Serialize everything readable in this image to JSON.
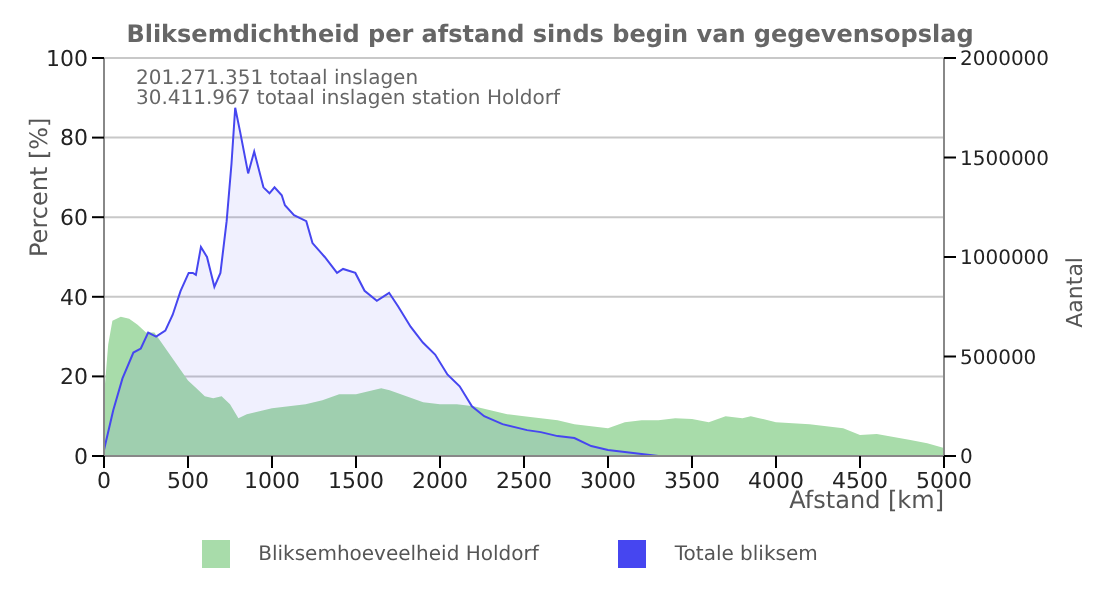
{
  "chart_data": {
    "type": "area",
    "title": "Bliksemdichtheid per afstand sinds begin van gegevensopslag",
    "xlabel": "Afstand   [km]",
    "ylabel": "Percent   [%]",
    "y2label": "Aantal",
    "annotations": [
      "201.271.351 totaal inslagen",
      "30.411.967 totaal inslagen station Holdorf"
    ],
    "xlim": [
      0,
      5000
    ],
    "xticks": [
      0,
      500,
      1000,
      1500,
      2000,
      2500,
      3000,
      3500,
      4000,
      4500,
      5000
    ],
    "ylim": [
      0,
      100
    ],
    "yticks": [
      0,
      20,
      40,
      60,
      80,
      100
    ],
    "y2lim": [
      0,
      2000000
    ],
    "y2ticks": [
      0,
      500000,
      1000000,
      1500000,
      2000000
    ],
    "grid": "y",
    "legend": "bottom",
    "series": [
      {
        "name": "Bliksemhoeveelheid Holdorf",
        "color": "#a8dcaa",
        "x": [
          0,
          25,
          50,
          100,
          150,
          200,
          250,
          300,
          350,
          400,
          450,
          500,
          550,
          600,
          650,
          700,
          750,
          800,
          850,
          900,
          1000,
          1100,
          1200,
          1300,
          1400,
          1500,
          1600,
          1650,
          1700,
          1800,
          1900,
          2000,
          2100,
          2200,
          2300,
          2400,
          2500,
          2600,
          2700,
          2800,
          2900,
          3000,
          3100,
          3200,
          3300,
          3400,
          3500,
          3600,
          3700,
          3800,
          3850,
          3900,
          4000,
          4200,
          4400,
          4500,
          4600,
          4800,
          4900,
          5000
        ],
        "values": [
          15,
          28,
          34,
          35,
          34.5,
          33,
          31,
          31,
          28,
          25,
          22,
          19,
          17,
          15,
          14.5,
          15,
          13,
          9.5,
          10.5,
          11,
          12,
          12.5,
          13,
          14,
          15.5,
          15.5,
          16.5,
          17,
          16.5,
          15,
          13.5,
          13,
          13,
          12.5,
          11.5,
          10.5,
          10,
          9.5,
          9,
          8,
          7.5,
          7,
          8.5,
          9,
          9,
          9.5,
          9.3,
          8.5,
          10,
          9.5,
          10,
          9.5,
          8.5,
          8,
          7,
          5.3,
          5.5,
          4,
          3.2,
          2
        ]
      },
      {
        "name": "Totale bliksem",
        "axis": "y2",
        "color": "#4646f0",
        "x": [
          0,
          55,
          110,
          175,
          219,
          263,
          310,
          365,
          409,
          456,
          504,
          529,
          547,
          577,
          613,
          657,
          693,
          730,
          759,
          781,
          810,
          858,
          894,
          949,
          985,
          1015,
          1058,
          1077,
          1131,
          1204,
          1241,
          1314,
          1387,
          1423,
          1496,
          1551,
          1624,
          1697,
          1752,
          1825,
          1898,
          1971,
          2044,
          2117,
          2190,
          2263,
          2372,
          2518,
          2600,
          2700,
          2800,
          2900,
          3000,
          3100,
          3200,
          3300,
          4000,
          5000
        ],
        "values": [
          30000,
          230000,
          390000,
          520000,
          540000,
          620000,
          600000,
          630000,
          710000,
          830000,
          920000,
          920000,
          910000,
          1050000,
          1000000,
          850000,
          920000,
          1180000,
          1470000,
          1750000,
          1630000,
          1420000,
          1530000,
          1350000,
          1320000,
          1350000,
          1310000,
          1260000,
          1210000,
          1180000,
          1070000,
          1000000,
          920000,
          940000,
          920000,
          830000,
          780000,
          820000,
          750000,
          650000,
          570000,
          510000,
          410000,
          350000,
          250000,
          200000,
          160000,
          130000,
          120000,
          100000,
          90000,
          50000,
          30000,
          20000,
          10000,
          0,
          0,
          0
        ]
      }
    ]
  }
}
